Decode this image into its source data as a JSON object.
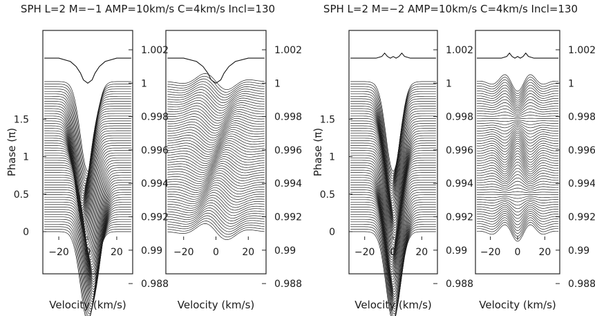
{
  "figure": {
    "titles": [
      "SPH L=2 M=−1 AMP=10km/s C=4km/s Incl=130",
      "SPH L=2 M=−2 AMP=10km/s C=4km/s Incl=130"
    ]
  },
  "chart_data": [
    {
      "type": "line",
      "title": "SPH L=2 M=−1 AMP=10km/s C=4km/s Incl=130",
      "xlabel": "Velocity (km/s)",
      "ylabel": "Phase (π)",
      "x_ticks": [
        "−20",
        "0",
        "20"
      ],
      "phase_ticks": [
        "0",
        "0.5",
        "1",
        "1.5"
      ],
      "flux_ticks": [
        "0.988",
        "0.99",
        "0.992",
        "0.994",
        "0.996",
        "0.998",
        "1",
        "1.002"
      ],
      "xlim": [
        -31,
        31
      ],
      "phase_range": [
        0,
        2
      ],
      "mode": {
        "l": 2,
        "m": -1,
        "amp_kms": 10,
        "c_kms": 4,
        "incl_deg": 130
      },
      "mean_profile": {
        "x": [
          -30,
          -20,
          -12,
          -8,
          -5,
          -3,
          0,
          3,
          5,
          8,
          12,
          20,
          30
        ],
        "y": [
          1.0015,
          1.0015,
          1.0013,
          1.001,
          1.0006,
          1.0002,
          1.0,
          1.0002,
          1.0006,
          1.001,
          1.0013,
          1.0015,
          1.0015
        ]
      },
      "line_profile": {
        "depth": 0.009,
        "sigma_kms": 5
      },
      "residual_amplitude": 0.0006
    },
    {
      "type": "line",
      "title": "SPH L=2 M=−2 AMP=10km/s C=4km/s Incl=130",
      "xlabel": "Velocity (km/s)",
      "ylabel": "Phase (π)",
      "x_ticks": [
        "−20",
        "0",
        "20"
      ],
      "phase_ticks": [
        "0",
        "0.5",
        "1",
        "1.5"
      ],
      "flux_ticks": [
        "0.988",
        "0.99",
        "0.992",
        "0.994",
        "0.996",
        "0.998",
        "1",
        "1.002"
      ],
      "xlim": [
        -31,
        31
      ],
      "phase_range": [
        0,
        2
      ],
      "mode": {
        "l": 2,
        "m": -2,
        "amp_kms": 10,
        "c_kms": 4,
        "incl_deg": 130
      },
      "mean_profile": {
        "x": [
          -30,
          -20,
          -12,
          -8,
          -6,
          -4,
          -2,
          0,
          2,
          4,
          6,
          8,
          12,
          20,
          30
        ],
        "y": [
          1.0015,
          1.0015,
          1.0015,
          1.0016,
          1.0018,
          1.0016,
          1.0015,
          1.0016,
          1.0015,
          1.0016,
          1.0018,
          1.0016,
          1.0015,
          1.0015,
          1.0015
        ]
      },
      "line_profile": {
        "depth": 0.009,
        "sigma_kms": 5
      },
      "residual_amplitude": 0.0006
    }
  ]
}
